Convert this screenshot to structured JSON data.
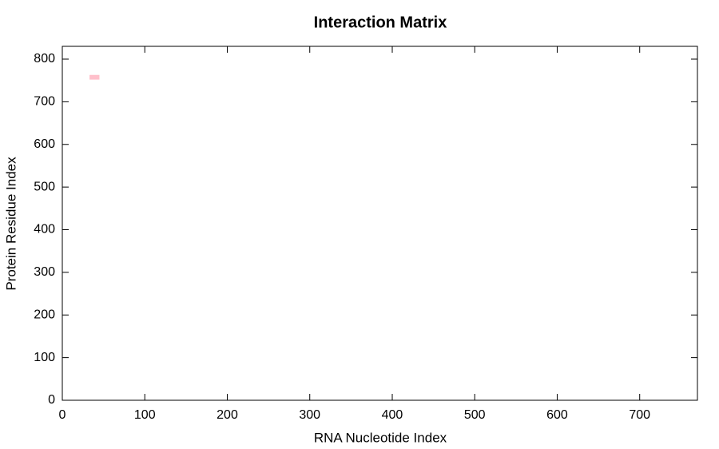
{
  "chart_data": {
    "type": "heatmap",
    "title": "Interaction Matrix",
    "x_label": "RNA Nucleotide Index",
    "y_label": "Protein Residue Index",
    "cells": [
      {
        "x0": 33,
        "x1": 45,
        "y0": 752,
        "y1": 763
      }
    ],
    "color": "#ffc0cb",
    "xlim": [
      0,
      770
    ],
    "xticks": [
      0,
      100,
      200,
      300,
      400,
      500,
      600,
      700
    ],
    "ylim": [
      0,
      830
    ],
    "yticks": [
      0,
      100,
      200,
      300,
      400,
      500,
      600,
      700,
      800
    ],
    "grid": false
  }
}
